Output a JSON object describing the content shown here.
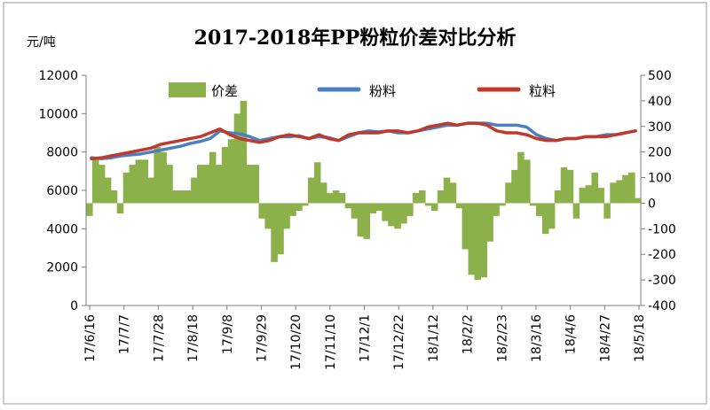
{
  "chart_data": {
    "type": "line",
    "title": "2017-2018年PP粉粒价差对比分析",
    "ylabel": "元/吨",
    "left_axis": {
      "ticks": [
        0,
        2000,
        4000,
        6000,
        8000,
        10000,
        12000
      ],
      "ylim": [
        0,
        12000
      ]
    },
    "right_axis": {
      "ticks": [
        -400,
        -300,
        -200,
        -100,
        0,
        100,
        200,
        300,
        400,
        500
      ],
      "ylim": [
        -400,
        500
      ]
    },
    "x_ticks": [
      "17/6/16",
      "17/7/7",
      "17/7/28",
      "17/8/18",
      "17/9/8",
      "17/9/29",
      "17/10/20",
      "17/11/10",
      "17/12/1",
      "17/12/22",
      "18/1/12",
      "18/2/2",
      "18/2/23",
      "18/3/16",
      "18/4/6",
      "18/4/27",
      "18/5/18"
    ],
    "legend": [
      "价差",
      "粉料",
      "粒料"
    ],
    "legend_position": "top",
    "gridlines": false,
    "colors": {
      "spread": "#8db14a",
      "powder": "#4a7fc4",
      "pellet": "#c0392b"
    },
    "series": [
      {
        "name": "价差",
        "axis": "right",
        "kind": "area",
        "values": [
          -50,
          180,
          150,
          100,
          50,
          -40,
          120,
          150,
          170,
          170,
          100,
          220,
          200,
          150,
          50,
          50,
          50,
          100,
          150,
          150,
          200,
          150,
          220,
          250,
          350,
          400,
          150,
          150,
          -60,
          -100,
          -230,
          -200,
          -100,
          -50,
          -30,
          -10,
          100,
          160,
          80,
          40,
          50,
          40,
          -20,
          -60,
          -130,
          -140,
          -40,
          -30,
          -70,
          -90,
          -100,
          -80,
          -50,
          40,
          50,
          -10,
          -30,
          50,
          100,
          80,
          -20,
          -180,
          -280,
          -300,
          -290,
          -150,
          -50,
          -10,
          80,
          130,
          200,
          170,
          -10,
          -50,
          -120,
          -100,
          50,
          140,
          130,
          -60,
          60,
          70,
          120,
          60,
          -60,
          80,
          90,
          110,
          120,
          20
        ],
        "approx_start": "17/6/16",
        "approx_end": "18/5/18"
      },
      {
        "name": "粉料",
        "axis": "left",
        "kind": "line",
        "values": [
          7700,
          7650,
          7700,
          7800,
          7850,
          7900,
          8000,
          8100,
          8200,
          8300,
          8450,
          8550,
          8700,
          9100,
          9000,
          8950,
          8800,
          8600,
          8700,
          8800,
          8800,
          8850,
          8700,
          8800,
          8750,
          8600,
          8800,
          9000,
          9100,
          9050,
          9100,
          9000,
          9000,
          9100,
          9200,
          9300,
          9400,
          9400,
          9500,
          9500,
          9500,
          9400,
          9400,
          9400,
          9300,
          8900,
          8700,
          8600,
          8700,
          8700,
          8800,
          8800,
          8900,
          8900,
          9000,
          9100
        ],
        "approx_start": "17/6/16",
        "approx_end": "18/5/18"
      },
      {
        "name": "粒料",
        "axis": "left",
        "kind": "line",
        "values": [
          7650,
          7700,
          7800,
          7900,
          8000,
          8100,
          8200,
          8400,
          8500,
          8600,
          8700,
          8800,
          9000,
          9200,
          8900,
          8700,
          8600,
          8500,
          8600,
          8800,
          8900,
          8800,
          8700,
          8900,
          8700,
          8600,
          8900,
          9000,
          9000,
          9000,
          9100,
          9100,
          9000,
          9100,
          9300,
          9400,
          9500,
          9400,
          9500,
          9500,
          9400,
          9100,
          9000,
          9000,
          8900,
          8700,
          8600,
          8600,
          8700,
          8700,
          8800,
          8800,
          8800,
          8900,
          9000,
          9100
        ],
        "approx_start": "17/6/16",
        "approx_end": "18/5/18"
      }
    ]
  }
}
